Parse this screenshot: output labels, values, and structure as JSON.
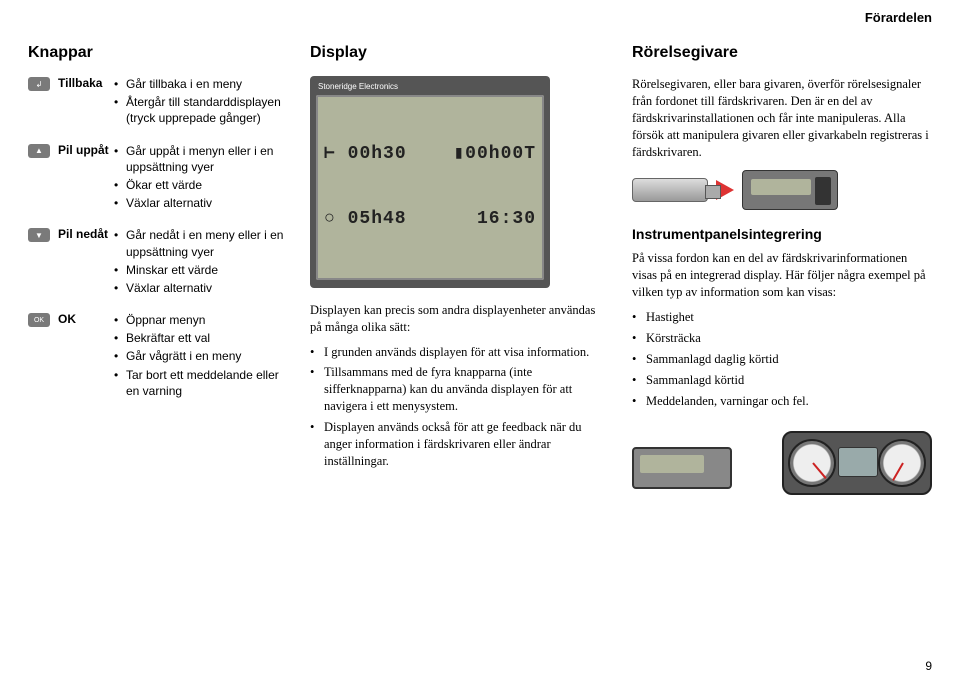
{
  "header": {
    "section": "Förardelen"
  },
  "col1": {
    "title": "Knappar",
    "keys": [
      {
        "icon": "↲",
        "name": "Tillbaka",
        "items": [
          "Går tillbaka i en meny",
          "Återgår till standard­displayen (tryck upprepade gånger)"
        ]
      },
      {
        "icon": "▲",
        "name": "Pil uppåt",
        "items": [
          "Går uppåt i menyn eller i en uppsättning vyer",
          "Ökar ett värde",
          "Växlar alternativ"
        ]
      },
      {
        "icon": "▼",
        "name": "Pil nedåt",
        "items": [
          "Går nedåt i en meny eller i en uppsättning vyer",
          "Minskar ett värde",
          "Växlar alternativ"
        ]
      },
      {
        "icon": "OK",
        "name": "OK",
        "items": [
          "Öppnar menyn",
          "Bekräftar ett val",
          "Går vågrätt i en meny",
          "Tar bort ett meddelande eller en varning"
        ]
      }
    ]
  },
  "col2": {
    "title": "Display",
    "lcd": {
      "brand": "Stoneridge Electronics",
      "line1a": "⊢ 00h30",
      "line1b": "▮00h00T",
      "line2a": "○ 05h48",
      "line2b": "16:30"
    },
    "intro": "Displayen kan precis som andra displayenheter användas på många olika sätt:",
    "bullets": [
      "I grunden används displayen för att visa information.",
      "Tillsammans med de fyra knapparna (inte sifferknapparna) kan du använda displayen för att navigera i ett menysystem.",
      "Displayen används också för att ge feedback när du anger information i färdskrivaren eller ändrar inställningar."
    ]
  },
  "col3": {
    "title": "Rörelsegivare",
    "para": "Rörelsegivaren, eller bara givaren, överför rörelsesignaler från fordonet till färdskrivaren. Den är en del av färdskrivarinstallationen och får inte manipuleras. Alla försök att manipulera givaren eller givarkabeln registreras i färdskrivaren.",
    "sub": "Instrumentpanelsintegrering",
    "para2": "På vissa fordon kan en del av färdskrivarinformationen visas på en integrerad display. Här följer några exempel på vilken typ av information som kan visas:",
    "bullets": [
      "Hastighet",
      "Körsträcka",
      "Sammanlagd daglig körtid",
      "Sammanlagd körtid",
      "Meddelanden, varningar och fel."
    ]
  },
  "pagenum": "9"
}
